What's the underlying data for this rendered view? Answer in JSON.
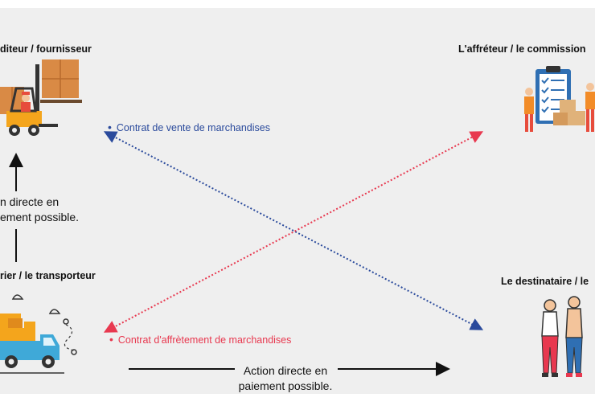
{
  "parties": {
    "top_left": "diteur / fournisseur",
    "top_right": "L'affréteur / le commission",
    "bottom_left": "rier / le transporteur",
    "bottom_right": "Le destinataire / le"
  },
  "contracts": {
    "sale": "Contrat de vente de marchandises",
    "charter": "Contrat d'affrètement de marchandises"
  },
  "actions": {
    "left_line1": "n directe en",
    "left_line2": "ement possible.",
    "bottom_line1": "Action directe en",
    "bottom_line2": "paiement possible."
  },
  "colors": {
    "sale": "#2a4a9c",
    "charter": "#e8384f",
    "arrow": "#111111",
    "background": "#efefef"
  },
  "icons": {
    "top_left": "forklift-worker-icon",
    "top_right": "clipboard-workers-icon",
    "bottom_left": "delivery-truck-icon",
    "bottom_right": "recipients-couple-icon"
  }
}
